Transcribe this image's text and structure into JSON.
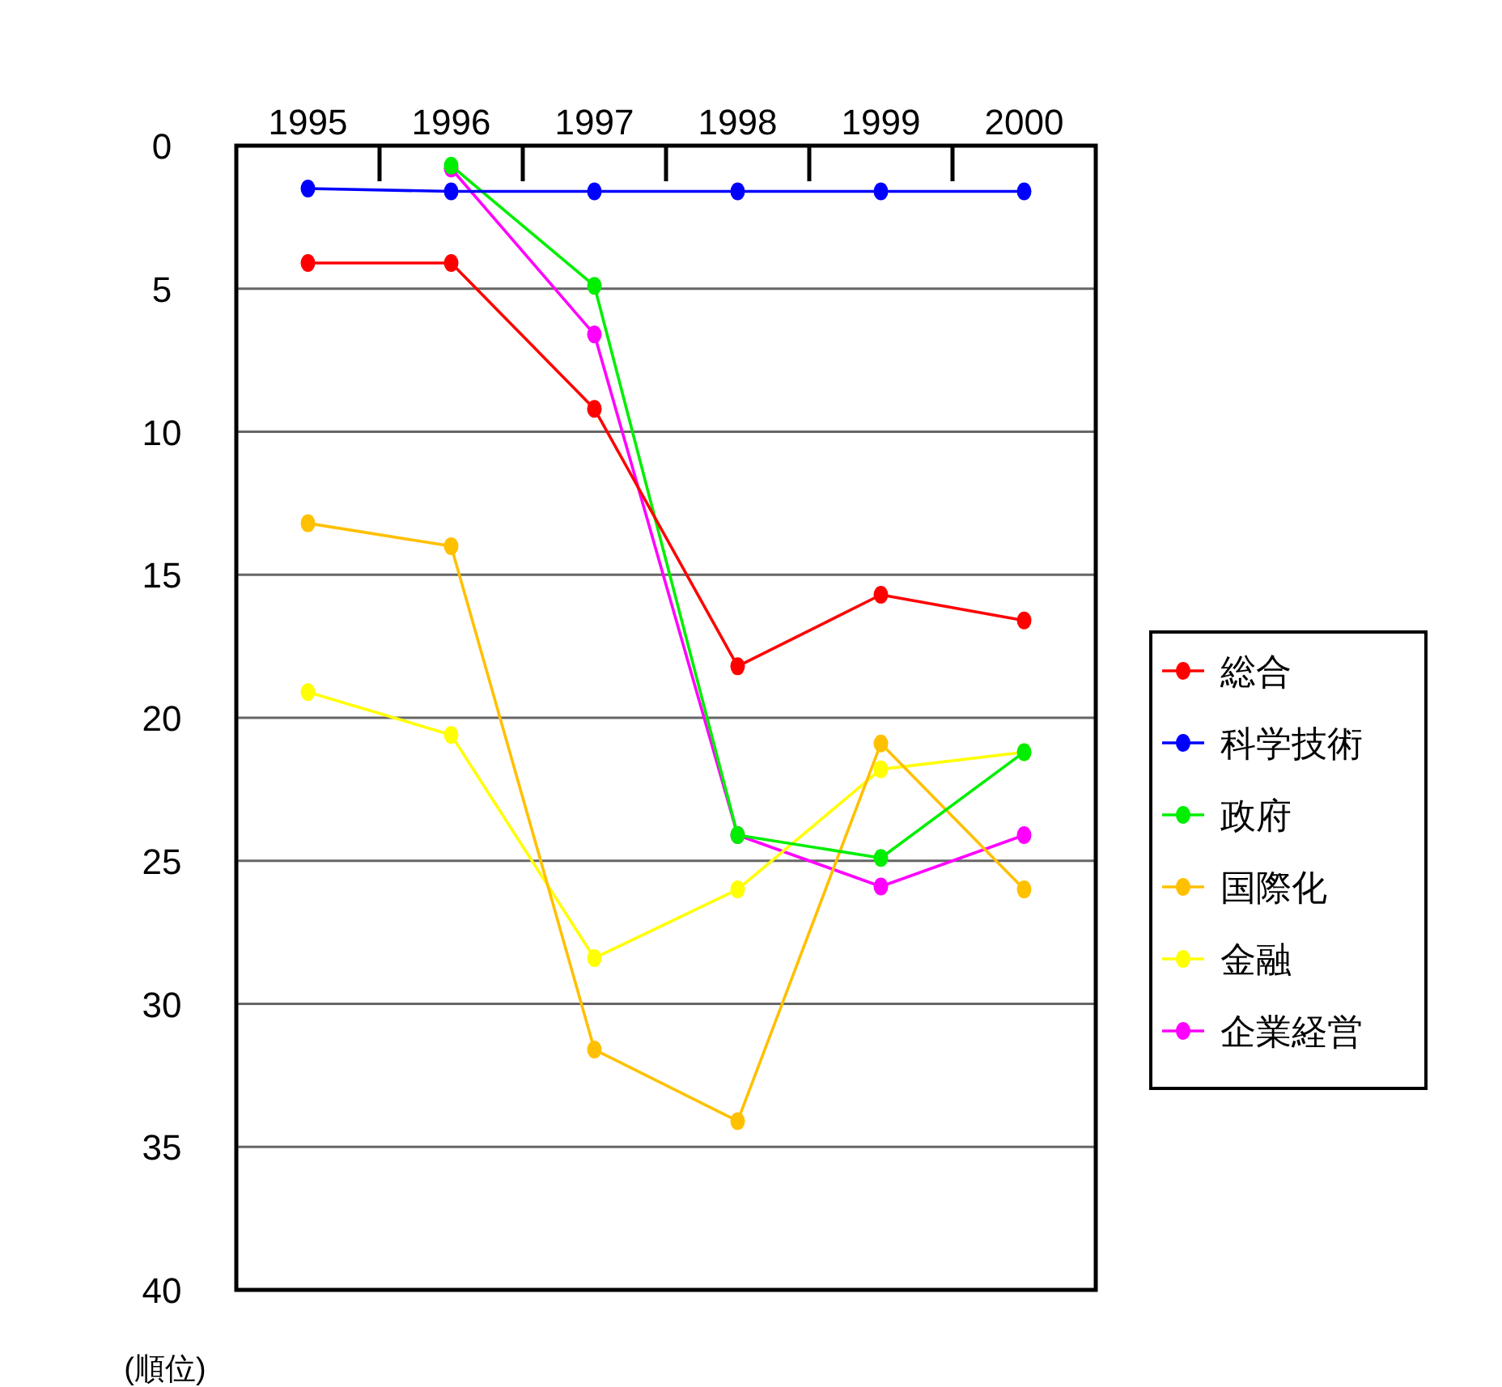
{
  "chart_data": {
    "type": "line",
    "ylabel": "(順位)",
    "categories": [
      "1995",
      "1996",
      "1997",
      "1998",
      "1999",
      "2000"
    ],
    "ylim": [
      40,
      0
    ],
    "yticks": [
      0,
      5,
      10,
      15,
      20,
      25,
      30,
      35,
      40
    ],
    "grid": "y",
    "legend": "right",
    "marker": "circle",
    "line_style": "solid",
    "series": [
      {
        "name": "総合",
        "color": "#ff0000",
        "values": [
          4.1,
          4.1,
          9.2,
          18.2,
          15.7,
          16.6
        ]
      },
      {
        "name": "科学技術",
        "color": "#0000ff",
        "values": [
          1.5,
          1.6,
          1.6,
          1.6,
          1.6,
          1.6
        ]
      },
      {
        "name": "政府",
        "color": "#00ee00",
        "values": [
          null,
          0.7,
          4.9,
          24.1,
          24.9,
          21.2
        ]
      },
      {
        "name": "国際化",
        "color": "#ffc000",
        "values": [
          13.2,
          14.0,
          31.6,
          34.1,
          20.9,
          26.0
        ]
      },
      {
        "name": "金融",
        "color": "#ffff00",
        "values": [
          19.1,
          20.6,
          28.4,
          26.0,
          21.8,
          21.2
        ]
      },
      {
        "name": "企業経営",
        "color": "#ff00ff",
        "values": [
          null,
          0.8,
          6.6,
          24.1,
          25.9,
          24.1
        ]
      }
    ]
  }
}
